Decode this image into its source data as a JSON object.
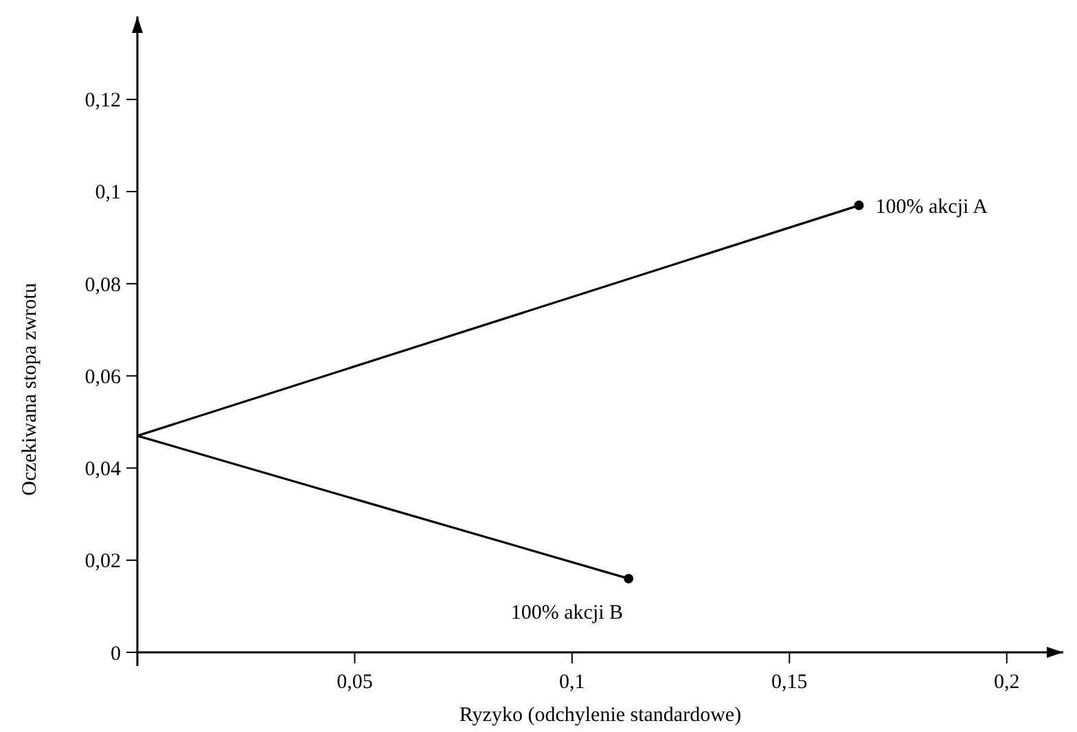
{
  "chart_data": {
    "type": "line",
    "xlabel": "Ryzyko (odchylenie standardowe)",
    "ylabel": "Oczekiwana stopa zwrotu",
    "xlim": [
      0,
      0.213
    ],
    "ylim": [
      0,
      0.138
    ],
    "xticks": [
      {
        "value": 0.05,
        "label": "0,05"
      },
      {
        "value": 0.1,
        "label": "0,1"
      },
      {
        "value": 0.15,
        "label": "0,15"
      },
      {
        "value": 0.2,
        "label": "0,2"
      }
    ],
    "yticks": [
      0,
      {
        "value": 0.02,
        "label": "0,02"
      },
      {
        "value": 0.04,
        "label": "0,04"
      },
      {
        "value": 0.06,
        "label": "0,06"
      },
      {
        "value": 0.08,
        "label": "0,08"
      },
      {
        "value": 0.1,
        "label": "0,1"
      },
      {
        "value": 0.12,
        "label": "0,12"
      }
    ],
    "grid": false,
    "series": [
      {
        "color": "#000000",
        "x": [
          0,
          0.166
        ],
        "values": [
          0.047,
          0.097
        ],
        "marker": "none"
      },
      {
        "color": "#000000",
        "x": [
          0,
          0.113
        ],
        "values": [
          0.047,
          0.016
        ],
        "marker": "none"
      },
      {
        "type": "scatter",
        "color": "#000000",
        "x": [
          0.166,
          0.113
        ],
        "values": [
          0.097,
          0.016
        ],
        "marker": "circle"
      }
    ],
    "annotations": [
      {
        "text": "100% akcji A",
        "x": 0.166,
        "y": 0.097
      },
      {
        "text": "100% akcji B",
        "x": 0.113,
        "y": 0.016
      }
    ]
  }
}
